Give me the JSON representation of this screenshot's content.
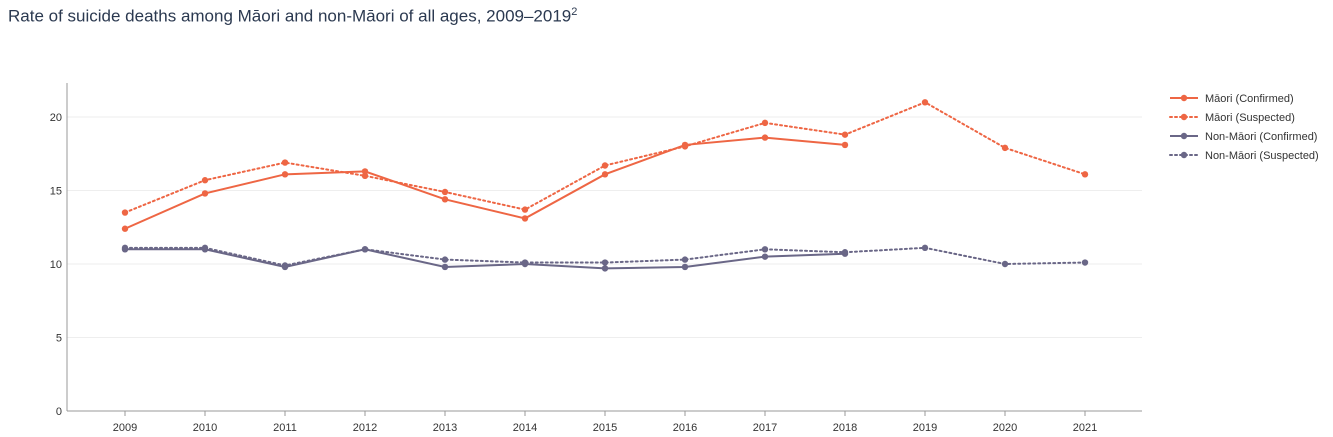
{
  "title": "Rate of suicide deaths among Māori and non-Māori of all ages, 2009–2019",
  "title_sup": "2",
  "chart_data": {
    "type": "line",
    "title": "Rate of suicide deaths among Māori and non-Māori of all ages, 2009–2019",
    "xlabel": "",
    "ylabel": "",
    "categories": [
      "2009",
      "2010",
      "2011",
      "2012",
      "2013",
      "2014",
      "2015",
      "2016",
      "2017",
      "2018",
      "2019",
      "2020",
      "2021"
    ],
    "ylim": [
      0,
      22.5
    ],
    "yticks": [
      0,
      5,
      10,
      15,
      20
    ],
    "grid": true,
    "legend_position": "top-right",
    "series": [
      {
        "name": "Māori (Confirmed)",
        "color": "#ee6644",
        "dash": "solid",
        "values": [
          12.4,
          14.8,
          16.1,
          16.3,
          14.4,
          13.1,
          16.1,
          18.1,
          18.6,
          18.1,
          null,
          null,
          null
        ]
      },
      {
        "name": "Māori (Suspected)",
        "color": "#ee6644",
        "dash": "dotted",
        "values": [
          13.5,
          15.7,
          16.9,
          16.0,
          14.9,
          13.7,
          16.7,
          18.0,
          19.6,
          18.8,
          21.0,
          17.9,
          16.1
        ]
      },
      {
        "name": "Non-Māori (Confirmed)",
        "color": "#6a6787",
        "dash": "solid",
        "values": [
          11.0,
          11.0,
          9.8,
          11.0,
          9.8,
          10.0,
          9.7,
          9.8,
          10.5,
          10.7,
          null,
          null,
          null
        ]
      },
      {
        "name": "Non-Māori (Suspected)",
        "color": "#6a6787",
        "dash": "dotted",
        "values": [
          11.1,
          11.1,
          9.9,
          11.0,
          10.3,
          10.1,
          10.1,
          10.3,
          11.0,
          10.8,
          11.1,
          10.0,
          10.1
        ]
      }
    ]
  }
}
